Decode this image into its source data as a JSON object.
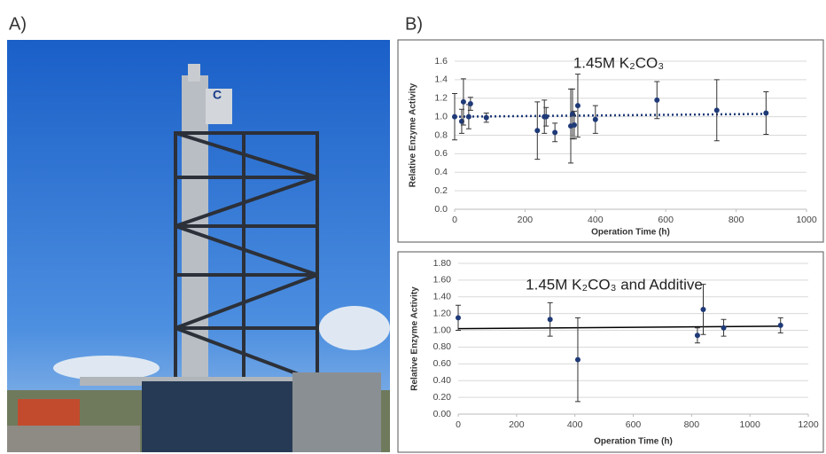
{
  "panels": {
    "a_label": "A)",
    "b_label": "B)"
  },
  "chart_data": [
    {
      "type": "scatter",
      "title": "1.45M K₂CO₃",
      "x_label": "Operation Time (h)",
      "y_label": "Relative Enzyme Activity",
      "x": [
        0,
        20,
        25,
        40,
        45,
        90,
        235,
        255,
        260,
        285,
        330,
        335,
        340,
        350,
        400,
        575,
        745,
        885
      ],
      "values": [
        1.0,
        0.95,
        1.16,
        1.0,
        1.14,
        0.99,
        0.85,
        1.0,
        1.0,
        0.83,
        0.9,
        1.03,
        0.91,
        1.12,
        0.97,
        1.18,
        1.07,
        1.04
      ],
      "errors": [
        0.25,
        0.13,
        0.25,
        0.13,
        0.07,
        0.05,
        0.31,
        0.18,
        0.1,
        0.1,
        0.4,
        0.27,
        0.15,
        0.34,
        0.15,
        0.2,
        0.33,
        0.23
      ],
      "color": "#1f3a78",
      "trendline": {
        "x": [
          0,
          885
        ],
        "values": [
          1.0,
          1.03
        ],
        "style": "dotted",
        "color": "#1f3a78"
      },
      "xlim": [
        0,
        1000
      ],
      "xticks": [
        0,
        200,
        400,
        600,
        800,
        1000
      ],
      "ylim": [
        0,
        1.6
      ],
      "yticks": [
        {
          "value": 0,
          "label": "0.0"
        },
        {
          "value": 0.2,
          "label": "0.2"
        },
        {
          "value": 0.4,
          "label": "0.4"
        },
        {
          "value": 0.6,
          "label": "0.6"
        },
        {
          "value": 0.8,
          "label": "0.8"
        },
        {
          "value": 1,
          "label": "1.0"
        },
        {
          "value": 1.2,
          "label": "1.2"
        },
        {
          "value": 1.4,
          "label": "1.4"
        },
        {
          "value": 1.6,
          "label": "1.6"
        }
      ],
      "grid": true
    },
    {
      "type": "scatter",
      "title": "1.45M K₂CO₃ and Additive",
      "x_label": "Operation Time (h)",
      "y_label": "Relative Enzyme Activity",
      "x": [
        0,
        315,
        410,
        820,
        840,
        910,
        1105
      ],
      "values": [
        1.15,
        1.13,
        0.65,
        0.94,
        1.25,
        1.03,
        1.06
      ],
      "errors": [
        0.15,
        0.2,
        0.5,
        0.09,
        0.3,
        0.1,
        0.09
      ],
      "color": "#1f3a78",
      "trendline": {
        "x": [
          0,
          1105
        ],
        "values": [
          1.02,
          1.05
        ],
        "style": "solid",
        "color": "#000000"
      },
      "xlim": [
        0,
        1200
      ],
      "xticks": [
        0,
        200,
        400,
        600,
        800,
        1000,
        1200
      ],
      "ylim": [
        0,
        1.8
      ],
      "yticks": [
        {
          "value": 0,
          "label": "0.00"
        },
        {
          "value": 0.2,
          "label": "0.20"
        },
        {
          "value": 0.4,
          "label": "0.40"
        },
        {
          "value": 0.6,
          "label": "0.60"
        },
        {
          "value": 0.8,
          "label": "0.80"
        },
        {
          "value": 1,
          "label": "1.00"
        },
        {
          "value": 1.2,
          "label": "1.20"
        },
        {
          "value": 1.4,
          "label": "1.40"
        },
        {
          "value": 1.6,
          "label": "1.60"
        },
        {
          "value": 1.8,
          "label": "1.80"
        }
      ],
      "grid": true
    }
  ]
}
